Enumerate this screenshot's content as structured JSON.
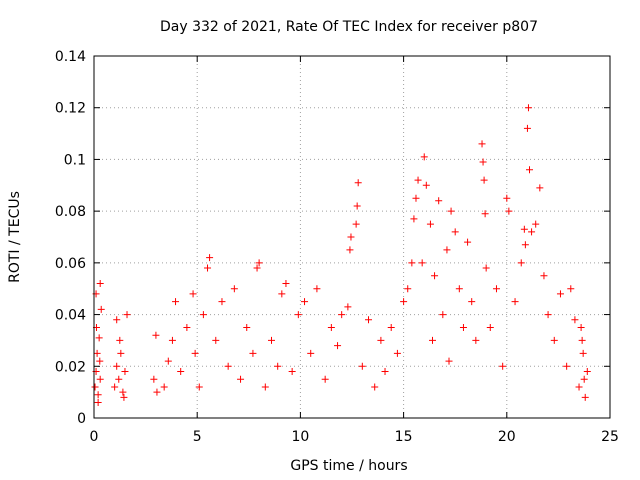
{
  "chart_data": {
    "type": "scatter",
    "title": "Day 332 of 2021, Rate Of TEC Index for receiver p807",
    "xlabel": "GPS time / hours",
    "ylabel": "ROTI / TECUs",
    "xlim": [
      0,
      25
    ],
    "ylim": [
      0,
      0.14
    ],
    "xticks": [
      0,
      5,
      10,
      15,
      20,
      25
    ],
    "xtick_labels": [
      "0",
      "5",
      "10",
      "15",
      "20",
      "25"
    ],
    "yticks": [
      0,
      0.02,
      0.04,
      0.06,
      0.08,
      0.1,
      0.12,
      0.14
    ],
    "ytick_labels": [
      "0",
      "0.02",
      "0.04",
      "0.06",
      "0.08",
      "0.1",
      "0.12",
      "0.14"
    ],
    "grid": true,
    "marker": "+",
    "marker_color": "#ff0000",
    "series": [
      {
        "points": [
          [
            0.05,
            0.012
          ],
          [
            0.1,
            0.018
          ],
          [
            0.15,
            0.025
          ],
          [
            0.2,
            0.009
          ],
          [
            0.25,
            0.031
          ],
          [
            0.3,
            0.015
          ],
          [
            0.35,
            0.042
          ],
          [
            0.1,
            0.048
          ],
          [
            0.3,
            0.052
          ],
          [
            0.2,
            0.006
          ],
          [
            0.28,
            0.022
          ],
          [
            0.12,
            0.035
          ],
          [
            1.0,
            0.012
          ],
          [
            1.1,
            0.02
          ],
          [
            1.2,
            0.015
          ],
          [
            1.3,
            0.025
          ],
          [
            1.4,
            0.01
          ],
          [
            1.5,
            0.018
          ],
          [
            1.1,
            0.038
          ],
          [
            1.6,
            0.04
          ],
          [
            1.25,
            0.03
          ],
          [
            1.45,
            0.008
          ],
          [
            2.9,
            0.015
          ],
          [
            3.0,
            0.032
          ],
          [
            3.05,
            0.01
          ],
          [
            3.4,
            0.012
          ],
          [
            3.6,
            0.022
          ],
          [
            3.8,
            0.03
          ],
          [
            3.95,
            0.045
          ],
          [
            4.2,
            0.018
          ],
          [
            4.5,
            0.035
          ],
          [
            4.8,
            0.048
          ],
          [
            4.9,
            0.025
          ],
          [
            5.1,
            0.012
          ],
          [
            5.3,
            0.04
          ],
          [
            5.5,
            0.058
          ],
          [
            5.6,
            0.062
          ],
          [
            5.9,
            0.03
          ],
          [
            6.2,
            0.045
          ],
          [
            6.5,
            0.02
          ],
          [
            6.8,
            0.05
          ],
          [
            7.1,
            0.015
          ],
          [
            7.4,
            0.035
          ],
          [
            7.7,
            0.025
          ],
          [
            7.9,
            0.058
          ],
          [
            8.0,
            0.06
          ],
          [
            8.3,
            0.012
          ],
          [
            8.6,
            0.03
          ],
          [
            8.9,
            0.02
          ],
          [
            9.1,
            0.048
          ],
          [
            9.3,
            0.052
          ],
          [
            9.6,
            0.018
          ],
          [
            9.9,
            0.04
          ],
          [
            10.2,
            0.045
          ],
          [
            10.5,
            0.025
          ],
          [
            10.8,
            0.05
          ],
          [
            11.2,
            0.015
          ],
          [
            11.5,
            0.035
          ],
          [
            11.8,
            0.028
          ],
          [
            12.0,
            0.04
          ],
          [
            12.3,
            0.043
          ],
          [
            12.4,
            0.065
          ],
          [
            12.45,
            0.07
          ],
          [
            12.7,
            0.075
          ],
          [
            12.75,
            0.082
          ],
          [
            12.8,
            0.091
          ],
          [
            13.0,
            0.02
          ],
          [
            13.3,
            0.038
          ],
          [
            13.6,
            0.012
          ],
          [
            13.9,
            0.03
          ],
          [
            14.1,
            0.018
          ],
          [
            14.4,
            0.035
          ],
          [
            14.7,
            0.025
          ],
          [
            15.0,
            0.045
          ],
          [
            15.2,
            0.05
          ],
          [
            15.4,
            0.06
          ],
          [
            15.5,
            0.077
          ],
          [
            15.6,
            0.085
          ],
          [
            15.7,
            0.092
          ],
          [
            15.9,
            0.06
          ],
          [
            16.0,
            0.101
          ],
          [
            16.1,
            0.09
          ],
          [
            16.3,
            0.075
          ],
          [
            16.5,
            0.055
          ],
          [
            16.7,
            0.084
          ],
          [
            16.9,
            0.04
          ],
          [
            17.1,
            0.065
          ],
          [
            17.3,
            0.08
          ],
          [
            17.5,
            0.072
          ],
          [
            17.7,
            0.05
          ],
          [
            17.9,
            0.035
          ],
          [
            18.1,
            0.068
          ],
          [
            18.3,
            0.045
          ],
          [
            18.5,
            0.03
          ],
          [
            18.8,
            0.106
          ],
          [
            18.85,
            0.099
          ],
          [
            18.9,
            0.092
          ],
          [
            18.95,
            0.079
          ],
          [
            19.0,
            0.058
          ],
          [
            19.2,
            0.035
          ],
          [
            19.5,
            0.05
          ],
          [
            19.8,
            0.02
          ],
          [
            20.0,
            0.085
          ],
          [
            20.1,
            0.08
          ],
          [
            20.4,
            0.045
          ],
          [
            20.7,
            0.06
          ],
          [
            20.85,
            0.073
          ],
          [
            20.9,
            0.067
          ],
          [
            21.0,
            0.112
          ],
          [
            21.05,
            0.12
          ],
          [
            21.1,
            0.096
          ],
          [
            21.2,
            0.072
          ],
          [
            21.4,
            0.075
          ],
          [
            21.6,
            0.089
          ],
          [
            21.8,
            0.055
          ],
          [
            22.0,
            0.04
          ],
          [
            22.3,
            0.03
          ],
          [
            22.6,
            0.048
          ],
          [
            22.9,
            0.02
          ],
          [
            23.1,
            0.05
          ],
          [
            23.3,
            0.038
          ],
          [
            23.5,
            0.012
          ],
          [
            23.6,
            0.035
          ],
          [
            23.7,
            0.025
          ],
          [
            23.8,
            0.008
          ],
          [
            23.9,
            0.018
          ],
          [
            23.65,
            0.03
          ],
          [
            23.75,
            0.015
          ],
          [
            16.4,
            0.03
          ],
          [
            17.2,
            0.022
          ]
        ]
      }
    ]
  }
}
